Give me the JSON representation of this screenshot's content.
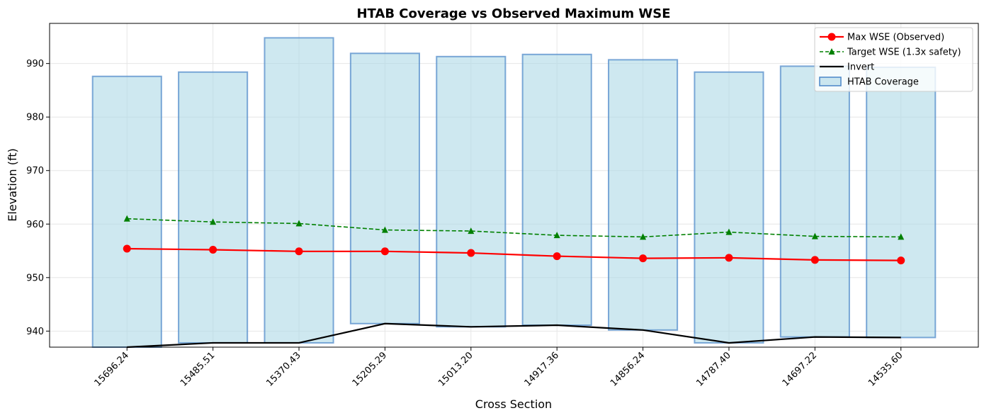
{
  "chart_data": {
    "type": "bar",
    "title": "HTAB Coverage vs Observed Maximum WSE",
    "xlabel": "Cross Section",
    "ylabel": "Elevation (ft)",
    "ylim": [
      937,
      997.5
    ],
    "yticks": [
      940,
      950,
      960,
      970,
      980,
      990
    ],
    "grid": true,
    "legend_placement": "top-right",
    "categories": [
      "15696.24",
      "15485.51",
      "15370.43",
      "15205.29",
      "15013.20",
      "14917.36",
      "14856.24",
      "14787.40",
      "14697.22",
      "14535.60"
    ],
    "coverage": {
      "name": "HTAB Coverage",
      "color": "#add8e6",
      "edge_color": "#4a86c8",
      "bottom": [
        937.0,
        937.8,
        937.8,
        941.4,
        940.8,
        941.1,
        940.2,
        937.8,
        938.9,
        938.8
      ],
      "top": [
        987.6,
        988.4,
        994.8,
        991.9,
        991.3,
        991.7,
        990.7,
        988.4,
        989.5,
        989.3
      ]
    },
    "series": [
      {
        "name": "Max WSE (Observed)",
        "color": "#ff0000",
        "style": "solid",
        "marker": "circle",
        "values": [
          955.4,
          955.2,
          954.9,
          954.9,
          954.6,
          954.0,
          953.6,
          953.7,
          953.3,
          953.2
        ]
      },
      {
        "name": "Target WSE (1.3x safety)",
        "color": "#008000",
        "style": "dashed",
        "marker": "triangle",
        "values": [
          961.0,
          960.4,
          960.1,
          958.9,
          958.7,
          957.9,
          957.6,
          958.5,
          957.7,
          957.6
        ]
      },
      {
        "name": "Invert",
        "color": "#000000",
        "style": "solid",
        "marker": "none",
        "values": [
          937.0,
          937.8,
          937.8,
          941.4,
          940.8,
          941.1,
          940.2,
          937.8,
          938.9,
          938.8
        ]
      }
    ],
    "legend": [
      "Max WSE (Observed)",
      "Target WSE (1.3x safety)",
      "Invert",
      "HTAB Coverage"
    ]
  }
}
